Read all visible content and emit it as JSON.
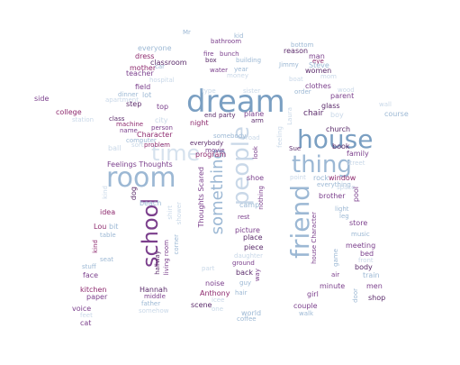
{
  "colors": {
    "background": "#ffffff",
    "pale": "#c9d8e8",
    "blue": "#9cb8d4",
    "mid_blue": "#7a9fc2",
    "purple": "#7b3f8c",
    "magenta": "#8e2a6e",
    "dark": "#5a2a6a"
  },
  "words": {
    "dream": "dream",
    "room": "room",
    "house": "house",
    "thing": "thing",
    "time": "time",
    "school": "school",
    "friend": "friend",
    "people": "people",
    "something": "something",
    "feelings_thoughts": "Feelings Thoughts",
    "thoughts_scared": "Thoughts Scared",
    "character_top": "Character",
    "college": "college",
    "side": "side",
    "apartment": "apartment",
    "step": "step",
    "top": "top",
    "class": "class",
    "machine": "machine",
    "name": "name",
    "person": "person",
    "computer": "computer",
    "ball": "ball",
    "sort": "sort",
    "problem": "problem",
    "beach": "beach",
    "dog": "dog",
    "shirt": "shirt",
    "shower": "shower",
    "idea": "idea",
    "lou": "Lou",
    "bit": "bit",
    "table": "table",
    "seat": "seat",
    "stuff": "stuff",
    "face": "face",
    "kind": "kind",
    "kitchen": "kitchen",
    "paper": "paper",
    "voice": "voice",
    "feet": "feet",
    "cat": "cat",
    "hannah": "Hannah",
    "middle": "middle",
    "hallway": "hallway",
    "living_room": "living room",
    "corner": "corner",
    "father": "father",
    "somehow": "somehow",
    "everyone": "everyone",
    "dress": "dress",
    "classroom": "classroom",
    "mother": "mother",
    "car": "car",
    "teacher": "teacher",
    "hospital": "hospital",
    "field": "field",
    "dinner": "dinner",
    "lot": "lot",
    "station": "station",
    "city": "city",
    "mr": "Mr",
    "kid": "kid",
    "bathroom": "bathroom",
    "fire": "fire",
    "bunch": "bunch",
    "box": "box",
    "building": "building",
    "water": "water",
    "year": "year",
    "money": "money",
    "type": "type",
    "sister": "sister",
    "end": "end",
    "party": "party",
    "plane": "plane",
    "night": "night",
    "arm": "arm",
    "somebody": "somebody",
    "everybody": "everybody",
    "friends": "friends",
    "program": "program",
    "movie": "movie",
    "road": "road",
    "feeling": "feeling",
    "look": "look",
    "shoe": "shoe",
    "camp": "camp",
    "nothing": "nothing",
    "rest": "rest",
    "picture": "picture",
    "place": "place",
    "piece": "piece",
    "daughter": "daughter",
    "back": "back",
    "way": "way",
    "guy": "guy",
    "ground": "ground",
    "noise": "noise",
    "hair": "hair",
    "anthony": "Anthony",
    "scene": "scene",
    "one": "one",
    "world": "world",
    "coffee": "coffee",
    "icee": "icee",
    "part": "part",
    "bottom": "bottom",
    "reason": "reason",
    "man": "man",
    "eye": "eye",
    "jimmy": "Jimmy",
    "steve": "Steve",
    "women": "women",
    "boat": "boat",
    "mom": "mom",
    "clothes": "clothes",
    "order": "order",
    "parent": "parent",
    "wood": "wood",
    "glass": "glass",
    "wall": "wall",
    "chair": "chair",
    "boy": "boy",
    "course": "course",
    "church": "church",
    "laura": "Laura",
    "book": "book",
    "family": "family",
    "sue": "Sue",
    "street": "street",
    "point": "point",
    "rock": "rock",
    "window": "window",
    "everything": "everything",
    "space": "space",
    "brother": "brother",
    "pool": "pool",
    "light": "light",
    "leg": "leg",
    "store": "store",
    "music": "music",
    "meeting": "meeting",
    "house_character": "house Character",
    "game": "game",
    "bed": "bed",
    "body": "body",
    "front": "front",
    "train": "train",
    "air": "air",
    "minute": "minute",
    "men": "men",
    "girl": "girl",
    "shop": "shop",
    "door": "door",
    "couple": "couple",
    "walk": "walk"
  }
}
